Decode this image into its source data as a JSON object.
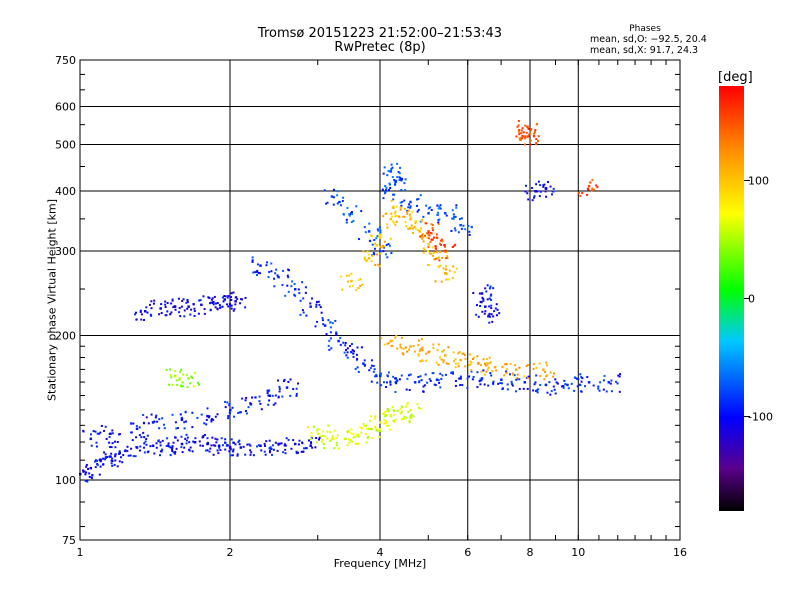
{
  "title_line1": "Tromsø 20151223 21:52:00–21:53:43",
  "title_line2": "RwPretec (8p)",
  "phases": {
    "title": "Phases",
    "o_line": "mean, sd,O: −92.5, 20.4",
    "x_line": "mean, sd,X:  91.7, 24.3"
  },
  "chart_data": {
    "type": "scatter",
    "title": "Tromsø 20151223 21:52:00–21:53:43",
    "subtitle": "RwPretec (8p)",
    "xlabel": "Frequency [MHz]",
    "ylabel": "Stationary phase Virtual Height [km]",
    "x_scale": "log",
    "y_scale": "log",
    "xlim": [
      1,
      16
    ],
    "ylim": [
      75,
      750
    ],
    "x_ticks": [
      "1",
      "2",
      "4",
      "6",
      "8",
      "10",
      "16"
    ],
    "x_tick_values": [
      1,
      2,
      4,
      6,
      8,
      10,
      16
    ],
    "y_ticks": [
      "75",
      "100",
      "200",
      "300",
      "400",
      "500",
      "600",
      "750"
    ],
    "y_tick_values": [
      75,
      100,
      200,
      300,
      400,
      500,
      600,
      750
    ],
    "grid": true,
    "colorbar": {
      "label": "[deg]",
      "range": [
        -180,
        180
      ],
      "ticks": [
        "100",
        "0",
        "-100"
      ],
      "tick_values": [
        100,
        0,
        -100
      ],
      "colormap": "rainbow (black-purple-blue-cyan-green-yellow-orange-red)"
    },
    "traces": [
      {
        "phase": -100,
        "points": [
          [
            1.0,
            103
          ],
          [
            1.05,
            106
          ],
          [
            1.1,
            110
          ],
          [
            1.15,
            112
          ],
          [
            1.2,
            114
          ],
          [
            1.3,
            117
          ],
          [
            1.4,
            118
          ],
          [
            1.5,
            118
          ],
          [
            1.6,
            119
          ],
          [
            1.7,
            120
          ],
          [
            1.8,
            119
          ],
          [
            1.9,
            118
          ],
          [
            2.0,
            117
          ],
          [
            2.1,
            117
          ],
          [
            2.3,
            118
          ],
          [
            2.5,
            119
          ],
          [
            2.7,
            119
          ],
          [
            2.9,
            118
          ]
        ]
      },
      {
        "phase": -95,
        "points": [
          [
            1.05,
            122
          ],
          [
            1.15,
            125
          ],
          [
            1.3,
            128
          ],
          [
            1.4,
            132
          ],
          [
            1.6,
            134
          ],
          [
            1.8,
            136
          ],
          [
            2.0,
            140
          ],
          [
            2.2,
            144
          ],
          [
            2.4,
            150
          ],
          [
            2.6,
            156
          ]
        ]
      },
      {
        "phase": -105,
        "points": [
          [
            1.35,
            225
          ],
          [
            1.45,
            228
          ],
          [
            1.55,
            230
          ],
          [
            1.65,
            230
          ],
          [
            1.75,
            232
          ],
          [
            1.85,
            235
          ],
          [
            1.95,
            238
          ],
          [
            2.05,
            236
          ]
        ]
      },
      {
        "phase": -90,
        "points": [
          [
            2.3,
            280
          ],
          [
            2.5,
            265
          ],
          [
            2.7,
            250
          ],
          [
            2.9,
            230
          ],
          [
            3.1,
            210
          ],
          [
            3.3,
            195
          ],
          [
            3.5,
            185
          ],
          [
            3.7,
            175
          ],
          [
            4.0,
            165
          ],
          [
            4.3,
            160
          ],
          [
            4.7,
            160
          ],
          [
            5.2,
            162
          ],
          [
            5.8,
            163
          ],
          [
            6.4,
            163
          ],
          [
            7.0,
            162
          ],
          [
            7.8,
            160
          ],
          [
            8.6,
            158
          ],
          [
            9.5,
            158
          ],
          [
            10.5,
            160
          ],
          [
            11.5,
            160
          ]
        ]
      },
      {
        "phase": -80,
        "points": [
          [
            3.2,
            390
          ],
          [
            3.5,
            360
          ],
          [
            3.8,
            330
          ],
          [
            4.0,
            300
          ],
          [
            4.1,
            400
          ],
          [
            4.2,
            440
          ],
          [
            4.3,
            420
          ],
          [
            4.6,
            380
          ],
          [
            5.0,
            360
          ],
          [
            5.4,
            360
          ],
          [
            5.8,
            340
          ]
        ]
      },
      {
        "phase": 60,
        "points": [
          [
            3.0,
            125
          ],
          [
            3.2,
            122
          ],
          [
            3.4,
            122
          ],
          [
            3.6,
            124
          ],
          [
            3.8,
            128
          ],
          [
            4.0,
            132
          ],
          [
            4.2,
            136
          ],
          [
            4.4,
            138
          ],
          [
            4.6,
            140
          ]
        ]
      },
      {
        "phase": 100,
        "points": [
          [
            3.5,
            260
          ],
          [
            3.8,
            290
          ],
          [
            4.0,
            320
          ],
          [
            4.2,
            350
          ],
          [
            4.4,
            370
          ],
          [
            4.6,
            350
          ],
          [
            4.8,
            330
          ],
          [
            5.0,
            310
          ],
          [
            5.2,
            290
          ],
          [
            5.4,
            270
          ]
        ]
      },
      {
        "phase": 110,
        "points": [
          [
            4.2,
            195
          ],
          [
            4.6,
            190
          ],
          [
            5.0,
            185
          ],
          [
            5.4,
            182
          ],
          [
            5.8,
            178
          ],
          [
            6.3,
            175
          ],
          [
            6.8,
            172
          ],
          [
            7.5,
            170
          ],
          [
            8.5,
            170
          ]
        ]
      },
      {
        "phase": 150,
        "points": [
          [
            5.0,
            330
          ],
          [
            5.2,
            320
          ],
          [
            5.4,
            300
          ]
        ]
      },
      {
        "phase": 40,
        "points": [
          [
            1.55,
            165
          ],
          [
            1.65,
            163
          ]
        ]
      },
      {
        "phase": -100,
        "points": [
          [
            6.4,
            245
          ],
          [
            6.5,
            230
          ],
          [
            6.6,
            220
          ],
          [
            8.2,
            400
          ],
          [
            8.6,
            405
          ]
        ]
      },
      {
        "phase": 150,
        "points": [
          [
            7.8,
            520
          ],
          [
            7.9,
            520
          ],
          [
            7.9,
            545
          ],
          [
            10.5,
            410
          ]
        ]
      }
    ]
  }
}
